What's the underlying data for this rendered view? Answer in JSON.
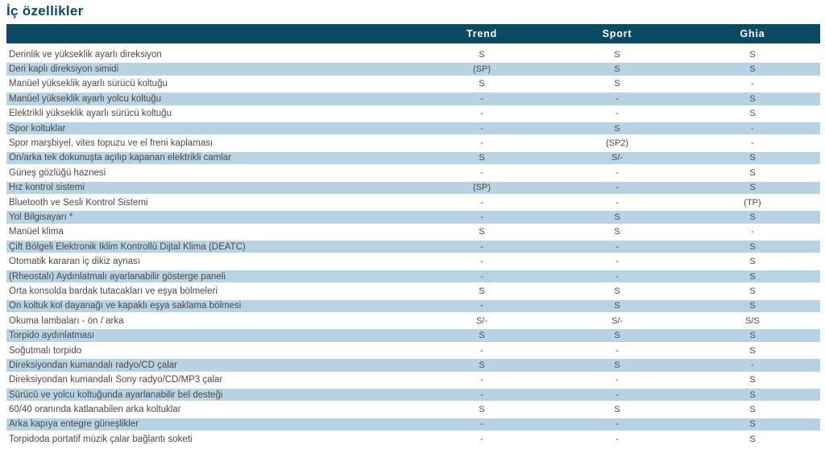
{
  "page": {
    "title": "İç özellikler"
  },
  "colors": {
    "header_bg": "#0c4a63",
    "title_text": "#0c4a63",
    "stripe_bg": "#b7d3e4",
    "body_text": "#4a4a4a",
    "header_text": "#ffffff"
  },
  "table": {
    "columns": [
      "Trend",
      "Sport",
      "Ghia"
    ],
    "rows": [
      {
        "label": "Derinlik ve yükseklik ayarlı direksiyon",
        "trend": "S",
        "sport": "S",
        "ghia": "S"
      },
      {
        "label": "Deri kaplı direksiyon simidi",
        "trend": "(SP)",
        "sport": "S",
        "ghia": "S"
      },
      {
        "label": "Manüel yükseklik ayarlı sürücü koltuğu",
        "trend": "S",
        "sport": "S",
        "ghia": "-"
      },
      {
        "label": "Manüel yükseklik ayarlı yolcu koltuğu",
        "trend": "-",
        "sport": "-",
        "ghia": "S"
      },
      {
        "label": "Elektrikli yükseklik ayarlı sürücü koltuğu",
        "trend": "-",
        "sport": "-",
        "ghia": "S"
      },
      {
        "label": "Spor koltuklar",
        "trend": "-",
        "sport": "S",
        "ghia": "-"
      },
      {
        "label": "Spor marşbiyel, vites topuzu ve el freni kaplaması",
        "trend": "-",
        "sport": "(SP2)",
        "ghia": "-"
      },
      {
        "label": "Ön/arka tek dokunuşta açılıp kapanan elektrikli camlar",
        "trend": "S",
        "sport": "S/-",
        "ghia": "S"
      },
      {
        "label": "Güneş gözlüğü haznesi",
        "trend": "-",
        "sport": "-",
        "ghia": "S"
      },
      {
        "label": "Hız kontrol sistemi",
        "trend": "(SP)",
        "sport": "-",
        "ghia": "S"
      },
      {
        "label": "Bluetooth ve Sesli Kontrol Sistemi",
        "trend": "-",
        "sport": "-",
        "ghia": "(TP)"
      },
      {
        "label": "Yol Bilgisayarı *",
        "trend": "-",
        "sport": "S",
        "ghia": "S"
      },
      {
        "label": "Manüel klima",
        "trend": "S",
        "sport": "S",
        "ghia": "-"
      },
      {
        "label": "Çift Bölgeli Elektronik İklim Kontrollü Dijtal Klima (DEATC)",
        "trend": "-",
        "sport": "-",
        "ghia": "S"
      },
      {
        "label": "Otomatik kararan iç dikiz aynası",
        "trend": "-",
        "sport": "-",
        "ghia": "S"
      },
      {
        "label": "(Rheostalı) Aydınlatmalı ayarlanabilir gösterge paneli",
        "trend": "-",
        "sport": "-",
        "ghia": "S"
      },
      {
        "label": "Orta konsolda bardak tutacakları ve eşya bölmeleri",
        "trend": "S",
        "sport": "S",
        "ghia": "S"
      },
      {
        "label": "Ön koltuk kol dayanağı ve kapaklı eşya saklama bölmesi",
        "trend": "-",
        "sport": "S",
        "ghia": "S"
      },
      {
        "label": "Okuma lambaları - ön / arka",
        "trend": "S/-",
        "sport": "S/-",
        "ghia": "S/S"
      },
      {
        "label": "Torpido aydınlatması",
        "trend": "S",
        "sport": "S",
        "ghia": "S"
      },
      {
        "label": "Soğutmalı torpido",
        "trend": "-",
        "sport": "-",
        "ghia": "S"
      },
      {
        "label": "Direksiyondan kumandalı radyo/CD çalar",
        "trend": "S",
        "sport": "S",
        "ghia": "-"
      },
      {
        "label": "Direksiyondan kumandalı Sony radyo/CD/MP3 çalar",
        "trend": "-",
        "sport": "-",
        "ghia": "S"
      },
      {
        "label": "Sürücü ve yolcu koltuğunda ayarlanabilir bel desteği",
        "trend": "-",
        "sport": "-",
        "ghia": "S"
      },
      {
        "label": "60/40 oranında katlanabilen arka koltuklar",
        "trend": "S",
        "sport": "S",
        "ghia": "S"
      },
      {
        "label": "Arka kapıya entegre güneşlikler",
        "trend": "-",
        "sport": "-",
        "ghia": "S"
      },
      {
        "label": "Torpidoda portatif müzik çalar bağlantı soketi",
        "trend": "-",
        "sport": "-",
        "ghia": "S"
      }
    ]
  }
}
